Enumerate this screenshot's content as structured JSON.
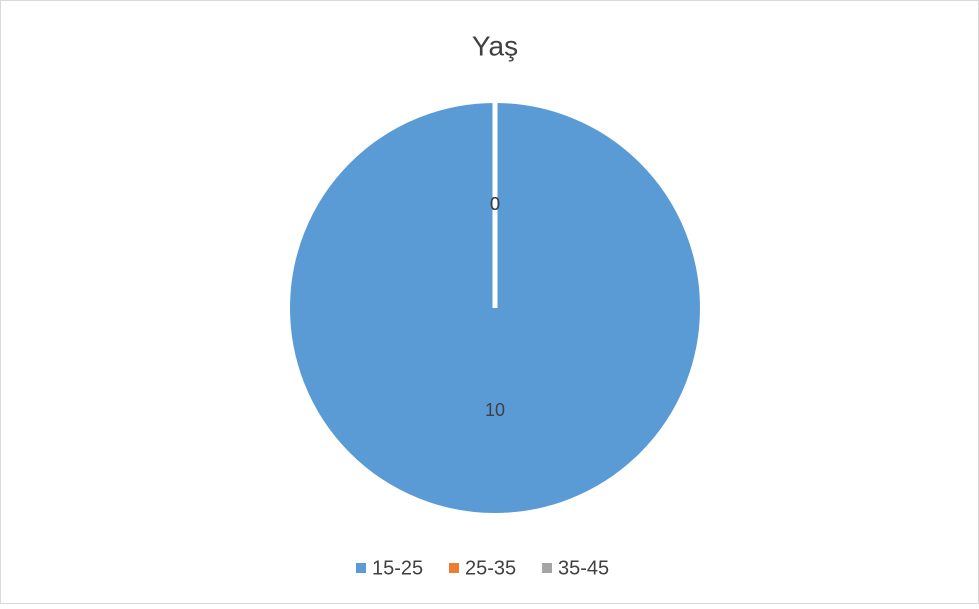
{
  "chart_data": {
    "type": "pie",
    "title": "Yaş",
    "categories": [
      "15-25",
      "25-35",
      "35-45"
    ],
    "values": [
      10,
      0,
      0
    ],
    "colors": [
      "#5b9bd5",
      "#ed7d31",
      "#a5a5a5"
    ],
    "legend": "bottom"
  }
}
